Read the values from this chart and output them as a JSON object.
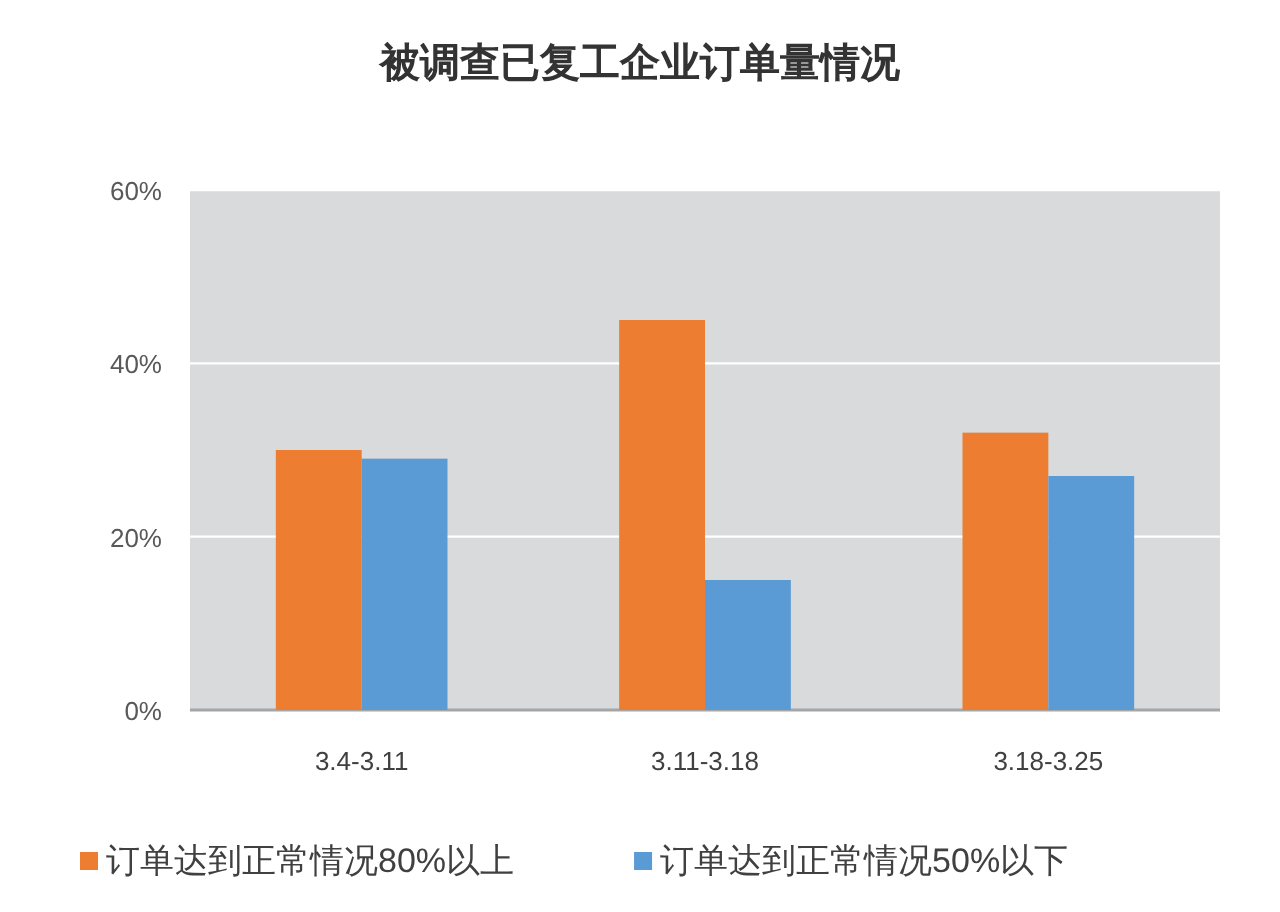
{
  "chart_data": {
    "type": "bar",
    "title": "被调查已复工企业订单量情况",
    "categories": [
      "3.4-3.11",
      "3.11-3.18",
      "3.18-3.25"
    ],
    "series": [
      {
        "name": "订单达到正常情况80%以上",
        "color": "#ed7d31",
        "values": [
          30,
          45,
          32
        ]
      },
      {
        "name": "订单达到正常情况50%以下",
        "color": "#5b9bd5",
        "values": [
          29,
          15,
          27
        ]
      }
    ],
    "ylim": [
      0,
      60
    ],
    "yticks": [
      {
        "value": 0,
        "label": "0%"
      },
      {
        "value": 20,
        "label": "20%"
      },
      {
        "value": 40,
        "label": "40%"
      },
      {
        "value": 60,
        "label": "60%"
      }
    ],
    "grid": "y",
    "legend": "bottom"
  }
}
